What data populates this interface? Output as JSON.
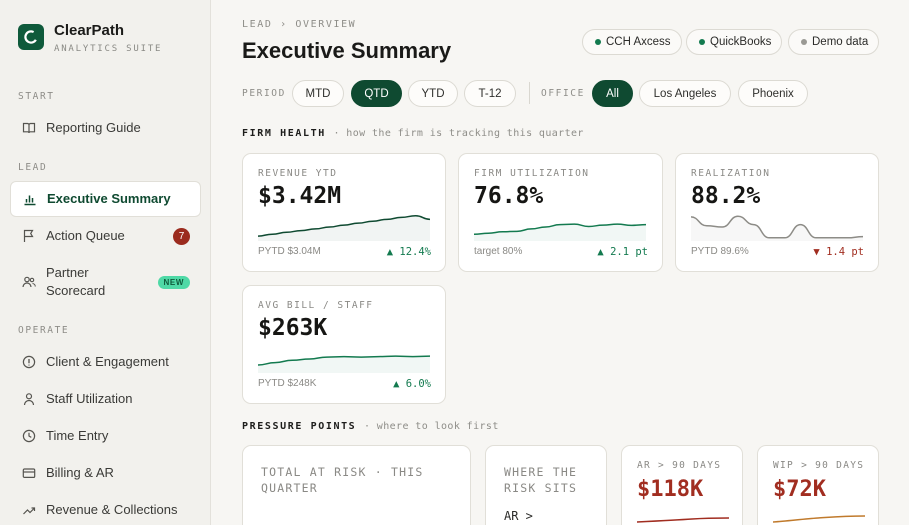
{
  "brand": {
    "name": "ClearPath",
    "subtitle": "ANALYTICS SUITE"
  },
  "sidebar": {
    "sections": [
      {
        "label": "START",
        "items": [
          {
            "label": "Reporting Guide",
            "icon": "book-icon"
          }
        ]
      },
      {
        "label": "LEAD",
        "items": [
          {
            "label": "Executive Summary",
            "icon": "bar-chart-icon",
            "active": true
          },
          {
            "label": "Action Queue",
            "icon": "flag-icon",
            "badge": "7"
          },
          {
            "label": "Partner\nScorecard",
            "icon": "users-icon",
            "badge": "NEW"
          }
        ]
      },
      {
        "label": "OPERATE",
        "items": [
          {
            "label": "Client & Engagement",
            "icon": "info-circle-icon"
          },
          {
            "label": "Staff Utilization",
            "icon": "person-icon"
          },
          {
            "label": "Time Entry",
            "icon": "clock-icon"
          },
          {
            "label": "Billing & AR",
            "icon": "card-icon"
          },
          {
            "label": "Revenue & Collections",
            "icon": "trend-up-icon"
          }
        ]
      }
    ]
  },
  "header": {
    "breadcrumb": "LEAD › OVERVIEW",
    "title": "Executive Summary",
    "sources": [
      {
        "label": "CCH Axcess",
        "color": "#137a4f"
      },
      {
        "label": "QuickBooks",
        "color": "#137a4f"
      },
      {
        "label": "Demo data",
        "color": "#9a9994"
      }
    ]
  },
  "filters": {
    "period_label": "PERIOD",
    "periods": [
      "MTD",
      "QTD",
      "YTD",
      "T-12"
    ],
    "period_selected": "QTD",
    "office_label": "OFFICE",
    "offices": [
      "All",
      "Los Angeles",
      "Phoenix"
    ],
    "office_selected": "All"
  },
  "firm_health": {
    "title": "FIRM HEALTH",
    "subtitle": "· how the firm is tracking this quarter",
    "cards": [
      {
        "label": "REVENUE YTD",
        "value": "$3.42M",
        "foot": "PYTD $3.04M",
        "delta": "▲ 12.4%",
        "direction": "up",
        "trend": [
          0.12,
          0.2,
          0.28,
          0.35,
          0.42,
          0.5,
          0.58,
          0.66,
          0.74,
          0.82,
          0.9,
          0.97,
          0.82
        ]
      },
      {
        "label": "FIRM UTILIZATION",
        "value": "76.8%",
        "foot": "target 80%",
        "delta": "▲ 2.1 pt",
        "direction": "up",
        "trend": [
          0.2,
          0.24,
          0.3,
          0.32,
          0.42,
          0.5,
          0.6,
          0.62,
          0.52,
          0.58,
          0.62,
          0.57,
          0.6
        ]
      },
      {
        "label": "REALIZATION",
        "value": "88.2%",
        "foot": "PYTD 89.6%",
        "delta": "▼ 1.4 pt",
        "direction": "down",
        "trend": [
          0.92,
          0.55,
          0.5,
          0.95,
          0.6,
          0.05,
          0.05,
          0.6,
          0.05,
          0.05,
          0.05,
          0.1
        ]
      }
    ],
    "extra_card": {
      "label": "AVG BILL / STAFF",
      "value": "$263K",
      "foot": "PYTD $248K",
      "delta": "▲ 6.0%",
      "direction": "up",
      "trend": [
        0.25,
        0.35,
        0.45,
        0.5,
        0.58,
        0.6,
        0.58,
        0.6,
        0.62,
        0.6,
        0.62
      ]
    }
  },
  "pressure_points": {
    "title": "PRESSURE POINTS",
    "subtitle": "· where to look first",
    "total_at_risk_label": "TOTAL AT RISK · THIS QUARTER",
    "where_label": "WHERE THE RISK SITS",
    "where_first_row": "AR >",
    "ar": {
      "label": "AR > 90 DAYS",
      "value": "$118K",
      "color": "#a12d20"
    },
    "wip": {
      "label": "WIP > 90 DAYS",
      "value": "$72K",
      "color": "#a12d20",
      "line_color": "#c07a2c"
    }
  }
}
